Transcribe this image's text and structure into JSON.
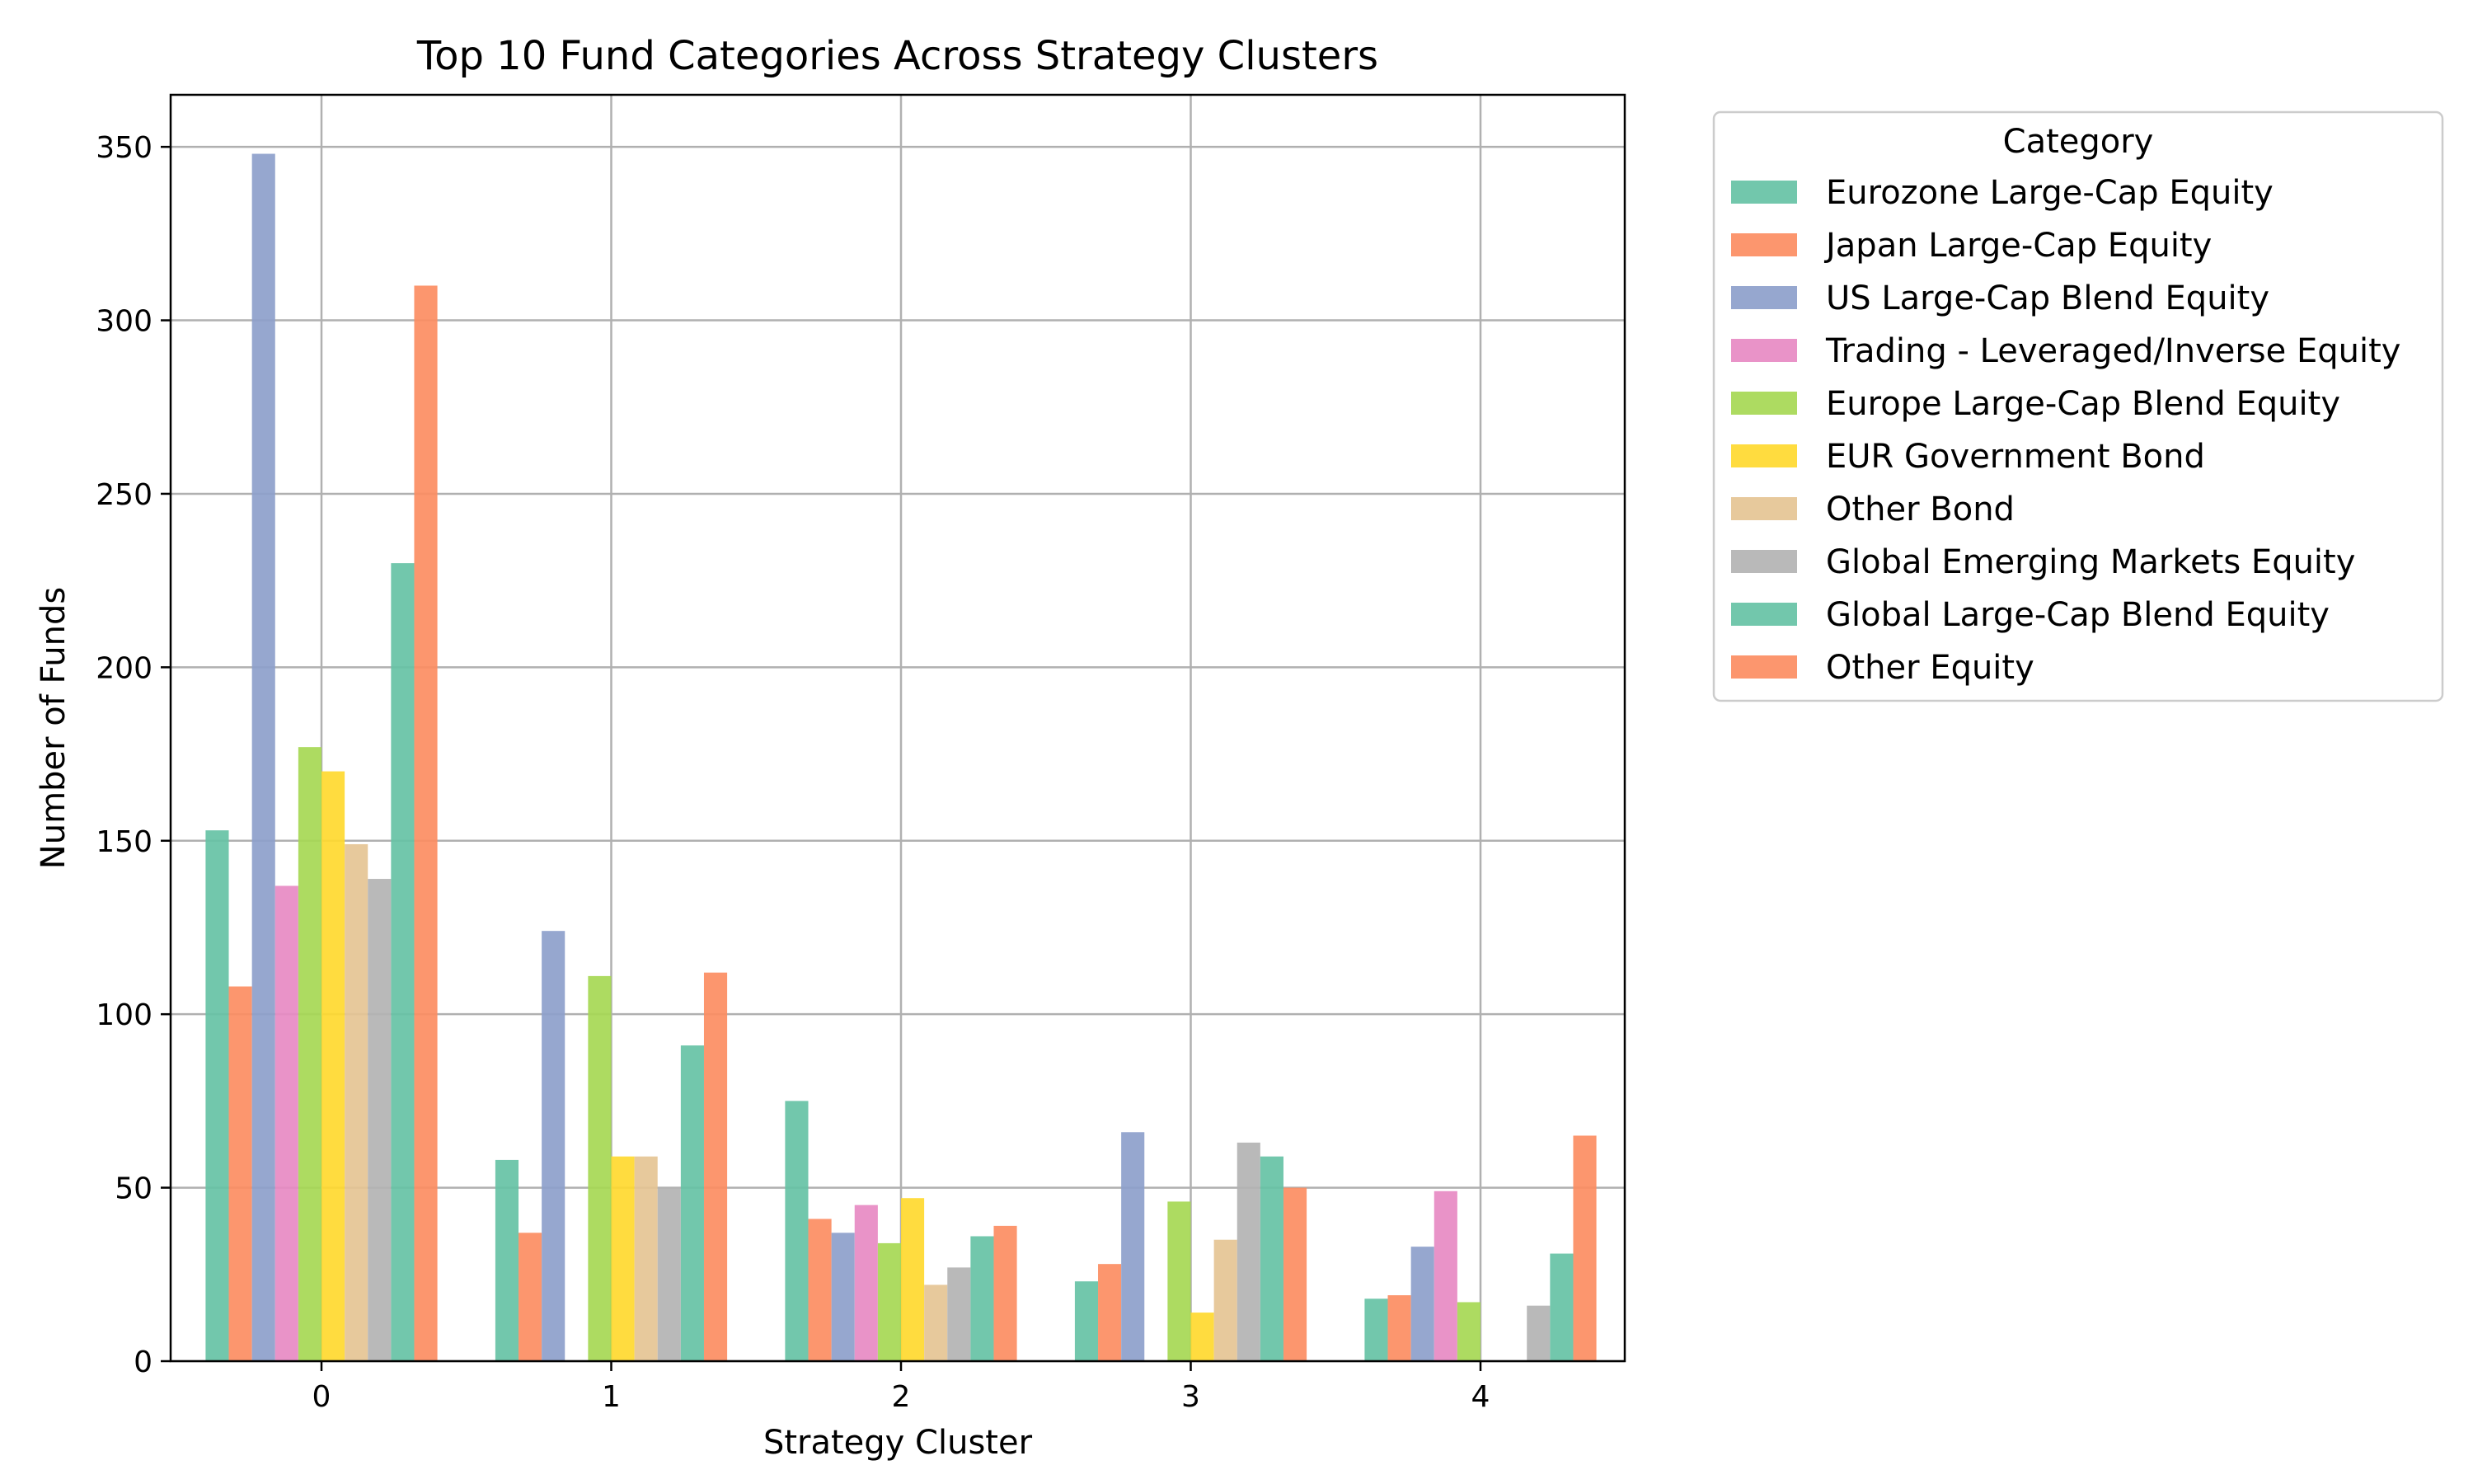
{
  "chart_data": {
    "type": "bar",
    "title": "Top 10 Fund Categories Across Strategy Clusters",
    "xlabel": "Strategy Cluster",
    "ylabel": "Number of Funds",
    "categories": [
      "0",
      "1",
      "2",
      "3",
      "4"
    ],
    "ylim": [
      0,
      365
    ],
    "yticks": [
      0,
      50,
      100,
      150,
      200,
      250,
      300,
      350
    ],
    "grid": true,
    "legend": {
      "title": "Category",
      "placement": "outside-right-top"
    },
    "series": [
      {
        "name": "Eurozone Large-Cap Equity",
        "color": "#66c2a5",
        "values": [
          153,
          58,
          75,
          23,
          18
        ]
      },
      {
        "name": "Japan Large-Cap Equity",
        "color": "#fc8d62",
        "values": [
          108,
          37,
          41,
          28,
          19
        ]
      },
      {
        "name": "US Large-Cap Blend Equity",
        "color": "#8da0cb",
        "values": [
          348,
          124,
          37,
          66,
          33
        ]
      },
      {
        "name": "Trading - Leveraged/Inverse Equity",
        "color": "#e78ac3",
        "values": [
          137,
          0,
          45,
          0,
          49
        ]
      },
      {
        "name": "Europe Large-Cap Blend Equity",
        "color": "#a6d854",
        "values": [
          177,
          111,
          34,
          46,
          17
        ]
      },
      {
        "name": "EUR Government Bond",
        "color": "#ffd92f",
        "values": [
          170,
          59,
          47,
          14,
          0
        ]
      },
      {
        "name": "Other Bond",
        "color": "#e5c494",
        "values": [
          149,
          59,
          22,
          35,
          0
        ]
      },
      {
        "name": "Global Emerging Markets Equity",
        "color": "#b3b3b3",
        "values": [
          139,
          50,
          27,
          63,
          16
        ]
      },
      {
        "name": "Global Large-Cap Blend Equity",
        "color": "#66c2a5",
        "values": [
          230,
          91,
          36,
          59,
          31
        ]
      },
      {
        "name": "Other Equity",
        "color": "#fc8d62",
        "values": [
          310,
          112,
          39,
          50,
          65
        ]
      }
    ]
  }
}
